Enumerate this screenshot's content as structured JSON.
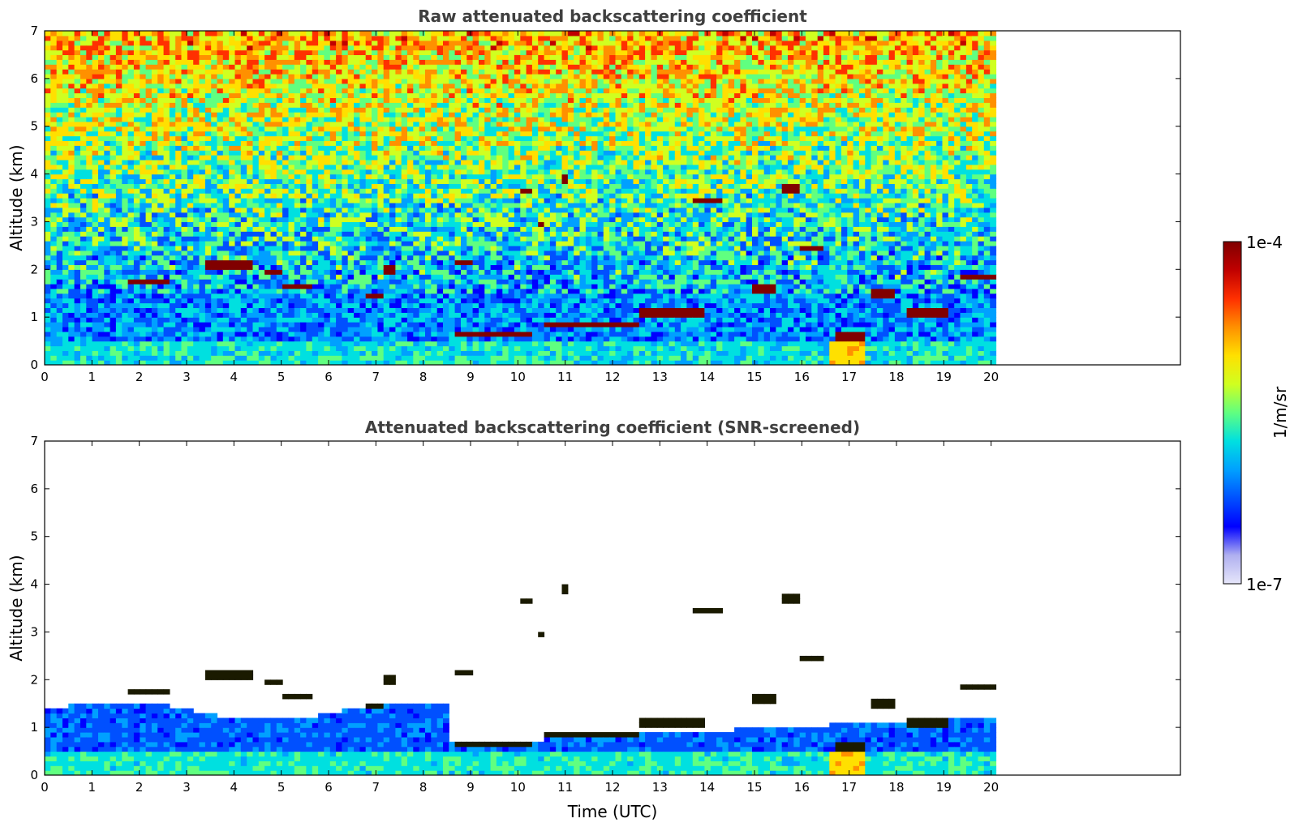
{
  "chart_data": [
    {
      "type": "heatmap",
      "title": "Raw attenuated backscattering coefficient",
      "xlabel": "",
      "ylabel": "Altitude (km)",
      "xlim": [
        0,
        24
      ],
      "ylim": [
        0,
        7
      ],
      "xticks": [
        0,
        1,
        2,
        3,
        4,
        5,
        6,
        7,
        8,
        9,
        10,
        11,
        12,
        13,
        14,
        15,
        16,
        17,
        18,
        19,
        20
      ],
      "yticks": [
        0,
        1,
        2,
        3,
        4,
        5,
        6,
        7
      ],
      "data_time_end": 20.1,
      "grid": false,
      "layers": [
        {
          "t0": 1.8,
          "t1": 2.6,
          "alt": 1.75
        },
        {
          "t0": 3.4,
          "t1": 4.4,
          "alt": 2.1
        },
        {
          "t0": 4.6,
          "t1": 5.0,
          "alt": 1.95
        },
        {
          "t0": 5.0,
          "t1": 5.7,
          "alt": 1.65
        },
        {
          "t0": 6.8,
          "t1": 7.2,
          "alt": 1.45
        },
        {
          "t0": 7.2,
          "t1": 7.4,
          "alt": 2.0
        },
        {
          "t0": 8.7,
          "t1": 9.0,
          "alt": 2.15
        },
        {
          "t0": 8.7,
          "t1": 10.3,
          "alt": 0.65
        },
        {
          "t0": 10.0,
          "t1": 10.3,
          "alt": 3.65
        },
        {
          "t0": 10.4,
          "t1": 10.6,
          "alt": 2.95
        },
        {
          "t0": 10.9,
          "t1": 11.1,
          "alt": 3.9
        },
        {
          "t0": 10.5,
          "t1": 12.5,
          "alt": 0.85
        },
        {
          "t0": 12.5,
          "t1": 14.0,
          "alt": 1.1
        },
        {
          "t0": 13.7,
          "t1": 14.3,
          "alt": 3.45
        },
        {
          "t0": 15.0,
          "t1": 15.5,
          "alt": 1.6
        },
        {
          "t0": 15.6,
          "t1": 16.0,
          "alt": 3.7
        },
        {
          "t0": 15.9,
          "t1": 16.5,
          "alt": 2.45
        },
        {
          "t0": 16.7,
          "t1": 17.3,
          "alt": 0.6
        },
        {
          "t0": 17.4,
          "t1": 18.0,
          "alt": 1.5
        },
        {
          "t0": 18.2,
          "t1": 19.1,
          "alt": 1.1
        },
        {
          "t0": 19.4,
          "t1": 20.1,
          "alt": 1.85
        }
      ]
    },
    {
      "type": "heatmap",
      "title": "Attenuated backscattering coefficient (SNR-screened)",
      "xlabel": "Time (UTC)",
      "ylabel": "Altitude (km)",
      "xlim": [
        0,
        24
      ],
      "ylim": [
        0,
        7
      ],
      "xticks": [
        0,
        1,
        2,
        3,
        4,
        5,
        6,
        7,
        8,
        9,
        10,
        11,
        12,
        13,
        14,
        15,
        16,
        17,
        18,
        19,
        20
      ],
      "yticks": [
        0,
        1,
        2,
        3,
        4,
        5,
        6,
        7
      ],
      "data_time_end": 20.1,
      "grid": false
    }
  ],
  "colorbar": {
    "label": "1/m/sr",
    "max_label": "1e-4",
    "min_label": "1e-7",
    "colors": [
      "#e6e6fa",
      "#b0b0f0",
      "#0000ff",
      "#0050ff",
      "#00a0ff",
      "#00e0e0",
      "#60ff80",
      "#d0ff20",
      "#ffe000",
      "#ff9000",
      "#ff3000",
      "#c00000",
      "#800000"
    ]
  }
}
